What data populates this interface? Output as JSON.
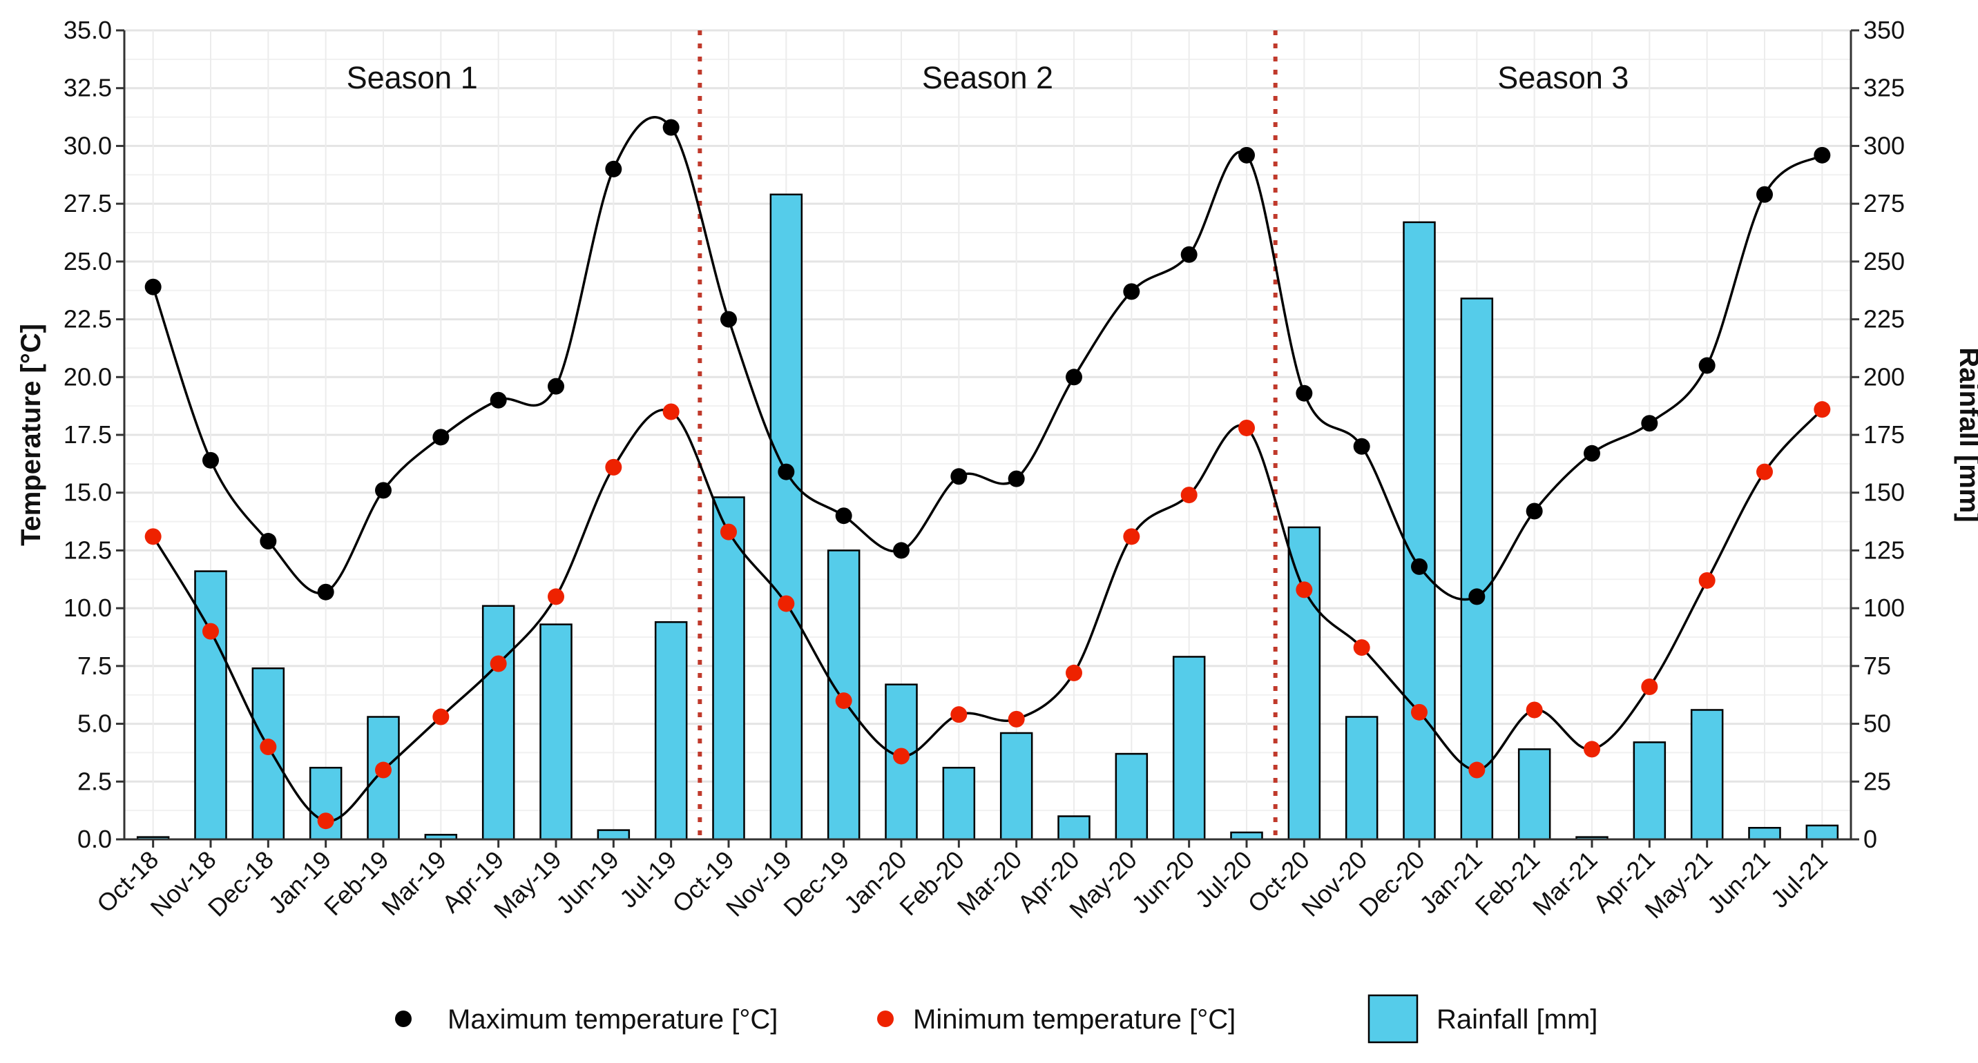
{
  "chart_data": {
    "type": "bar",
    "categories": [
      "Oct-18",
      "Nov-18",
      "Dec-18",
      "Jan-19",
      "Feb-19",
      "Mar-19",
      "Apr-19",
      "May-19",
      "Jun-19",
      "Jul-19",
      "Oct-19",
      "Nov-19",
      "Dec-19",
      "Jan-20",
      "Feb-20",
      "Mar-20",
      "Apr-20",
      "May-20",
      "Jun-20",
      "Jul-20",
      "Oct-20",
      "Nov-20",
      "Dec-20",
      "Jan-21",
      "Feb-21",
      "Mar-21",
      "Apr-21",
      "May-21",
      "Jun-21",
      "Jul-21"
    ],
    "series": [
      {
        "name": "Maximum temperature [°C]",
        "kind": "points+smooth-line",
        "axis": "left",
        "color": "#000000",
        "values": [
          23.9,
          16.4,
          12.9,
          10.7,
          15.1,
          17.4,
          19.0,
          19.6,
          29.0,
          30.8,
          22.5,
          15.9,
          14.0,
          12.5,
          15.7,
          15.6,
          20.0,
          23.7,
          25.3,
          29.6,
          19.3,
          17.0,
          11.8,
          10.5,
          14.2,
          16.7,
          18.0,
          20.5,
          27.9,
          29.6
        ]
      },
      {
        "name": "Minimum temperature [°C]",
        "kind": "points+smooth-line",
        "axis": "left",
        "color": "#ee2200",
        "values": [
          13.1,
          9.0,
          4.0,
          0.8,
          3.0,
          5.3,
          7.6,
          10.5,
          16.1,
          18.5,
          13.3,
          10.2,
          6.0,
          3.6,
          5.4,
          5.2,
          7.2,
          13.1,
          14.9,
          17.8,
          10.8,
          8.3,
          5.5,
          3.0,
          5.6,
          3.9,
          6.6,
          11.2,
          15.9,
          18.6
        ]
      },
      {
        "name": "Rainfall [mm]",
        "kind": "bar",
        "axis": "right",
        "color": "#55ccea",
        "values": [
          1,
          116,
          74,
          31,
          53,
          2,
          101,
          93,
          4,
          94,
          148,
          279,
          125,
          67,
          31,
          46,
          10,
          37,
          79,
          3,
          135,
          53,
          267,
          234,
          39,
          1,
          42,
          56,
          5,
          6
        ]
      }
    ],
    "ylabel": "Temperature [°C]",
    "y2label": "Rainfall [mm]",
    "ylim": [
      0,
      35
    ],
    "y2lim": [
      0,
      350
    ],
    "yticks": [
      "0.0",
      "2.5",
      "5.0",
      "7.5",
      "10.0",
      "12.5",
      "15.0",
      "17.5",
      "20.0",
      "22.5",
      "25.0",
      "27.5",
      "30.0",
      "32.5",
      "35.0"
    ],
    "y2ticks": [
      "0",
      "25",
      "50",
      "75",
      "100",
      "125",
      "150",
      "175",
      "200",
      "225",
      "250",
      "275",
      "300",
      "325",
      "350"
    ],
    "season_dividers_after_index": [
      9,
      19
    ],
    "season_labels": [
      "Season 1",
      "Season 2",
      "Season 3"
    ],
    "grid": true,
    "legend_position": "bottom"
  }
}
